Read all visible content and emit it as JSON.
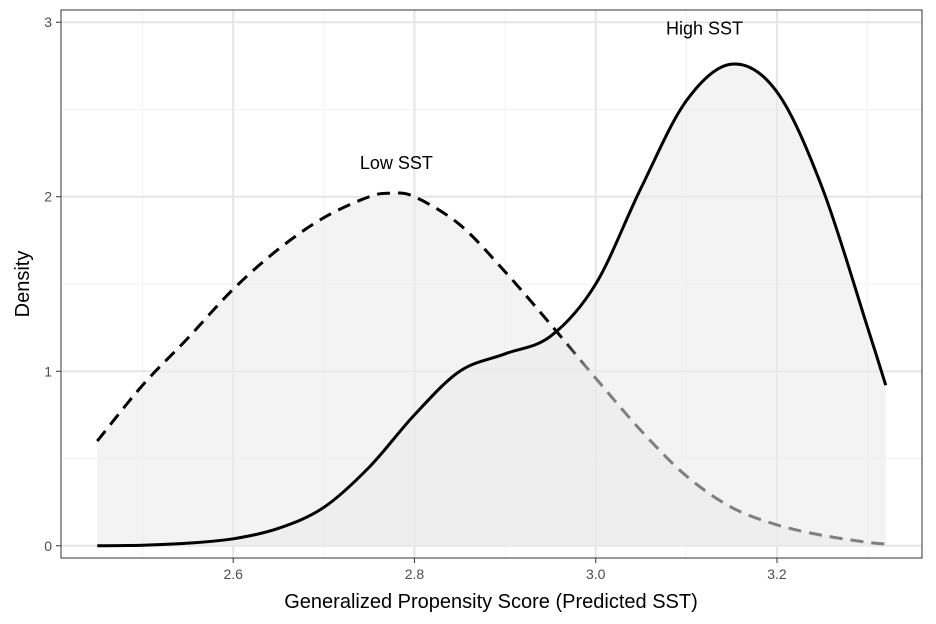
{
  "chart_data": {
    "type": "area",
    "title": "",
    "xlabel": "Generalized Propensity Score (Predicted SST)",
    "ylabel": "Density",
    "xlim": [
      2.41,
      3.36
    ],
    "ylim": [
      -0.07,
      3.07
    ],
    "xticks": [
      2.6,
      2.8,
      3.0,
      3.2
    ],
    "xtick_labels": [
      "2.6",
      "2.8",
      "3.0",
      "3.2"
    ],
    "yticks": [
      0,
      1,
      2,
      3
    ],
    "ytick_labels": [
      "0",
      "1",
      "2",
      "3"
    ],
    "grid": true,
    "legend": "none",
    "fill_color": "#ebebeb",
    "series": [
      {
        "line_style": "dashed",
        "color_left": "#000000",
        "color_right": "#7f7f7f",
        "x": [
          2.45,
          2.5,
          2.55,
          2.6,
          2.65,
          2.7,
          2.75,
          2.775,
          2.8,
          2.85,
          2.9,
          2.95,
          3.0,
          3.05,
          3.1,
          3.15,
          3.2,
          3.25,
          3.3,
          3.32
        ],
        "y": [
          0.6,
          0.92,
          1.19,
          1.47,
          1.7,
          1.88,
          2.0,
          2.02,
          2.0,
          1.84,
          1.57,
          1.27,
          0.96,
          0.66,
          0.4,
          0.22,
          0.12,
          0.06,
          0.02,
          0.01
        ]
      },
      {
        "line_style": "solid",
        "color": "#000000",
        "x": [
          2.45,
          2.5,
          2.55,
          2.6,
          2.65,
          2.7,
          2.75,
          2.8,
          2.85,
          2.9,
          2.95,
          3.0,
          3.05,
          3.1,
          3.15,
          3.2,
          3.25,
          3.3,
          3.32
        ],
        "y": [
          0.0,
          0.003,
          0.015,
          0.04,
          0.1,
          0.22,
          0.45,
          0.75,
          1.0,
          1.1,
          1.2,
          1.5,
          2.05,
          2.55,
          2.76,
          2.6,
          2.05,
          1.25,
          0.92
        ]
      }
    ],
    "annotations": [
      {
        "text": "Low SST",
        "x": 2.78,
        "y": 2.16
      },
      {
        "text": "High SST",
        "x": 3.12,
        "y": 2.93
      }
    ]
  }
}
